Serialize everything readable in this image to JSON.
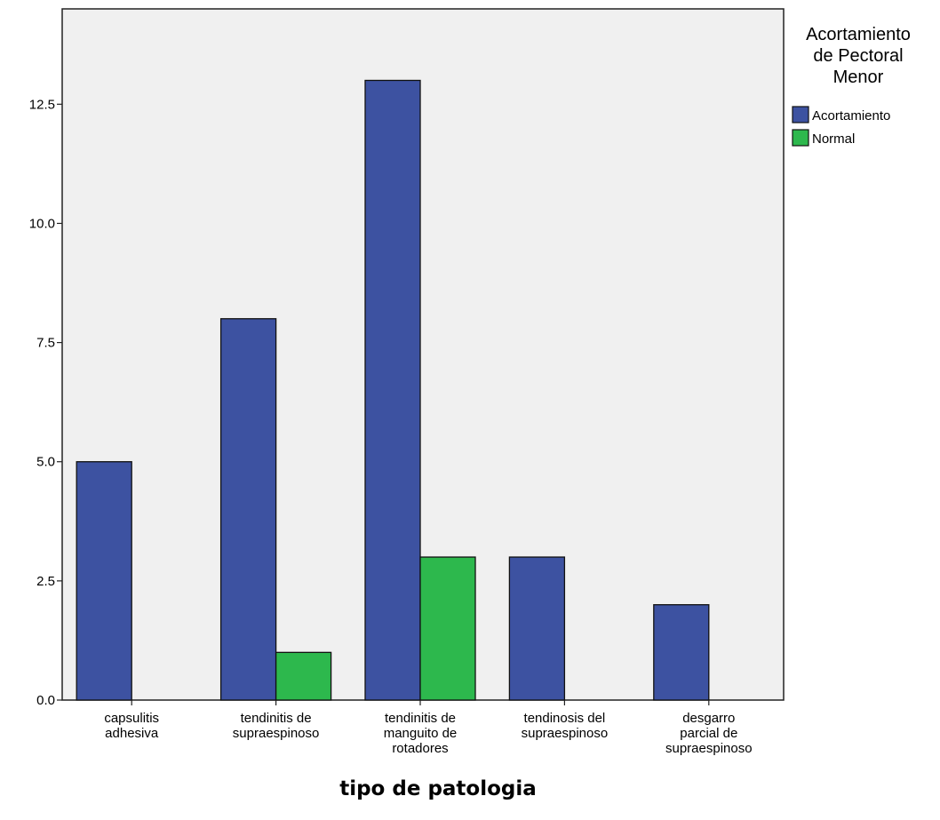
{
  "chart_data": {
    "type": "bar",
    "xlabel": "tipo de patologia",
    "ylabel": "",
    "ylim": [
      0,
      14.5
    ],
    "yticks": [
      "0.0",
      "2.5",
      "5.0",
      "7.5",
      "10.0",
      "12.5"
    ],
    "ytick_values": [
      0,
      2.5,
      5,
      7.5,
      10,
      12.5
    ],
    "categories": [
      [
        "capsulitis",
        "adhesiva"
      ],
      [
        "tendinitis de",
        "supraespinoso"
      ],
      [
        "tendinitis de",
        "manguito de",
        "rotadores"
      ],
      [
        "tendinosis del",
        "supraespinoso"
      ],
      [
        "desgarro",
        "parcial de",
        "supraespinoso"
      ]
    ],
    "series": [
      {
        "name": "Acortamiento",
        "color": "#3d52a1",
        "values": [
          5,
          8,
          13,
          3,
          2
        ]
      },
      {
        "name": "Normal",
        "color": "#2db84d",
        "values": [
          0,
          1,
          3,
          0,
          0
        ]
      }
    ],
    "legend": {
      "title_lines": [
        "Acortamiento",
        "de Pectoral",
        "Menor"
      ],
      "placement": "right"
    },
    "plot_background": "#f0f0f0",
    "grid": false
  }
}
